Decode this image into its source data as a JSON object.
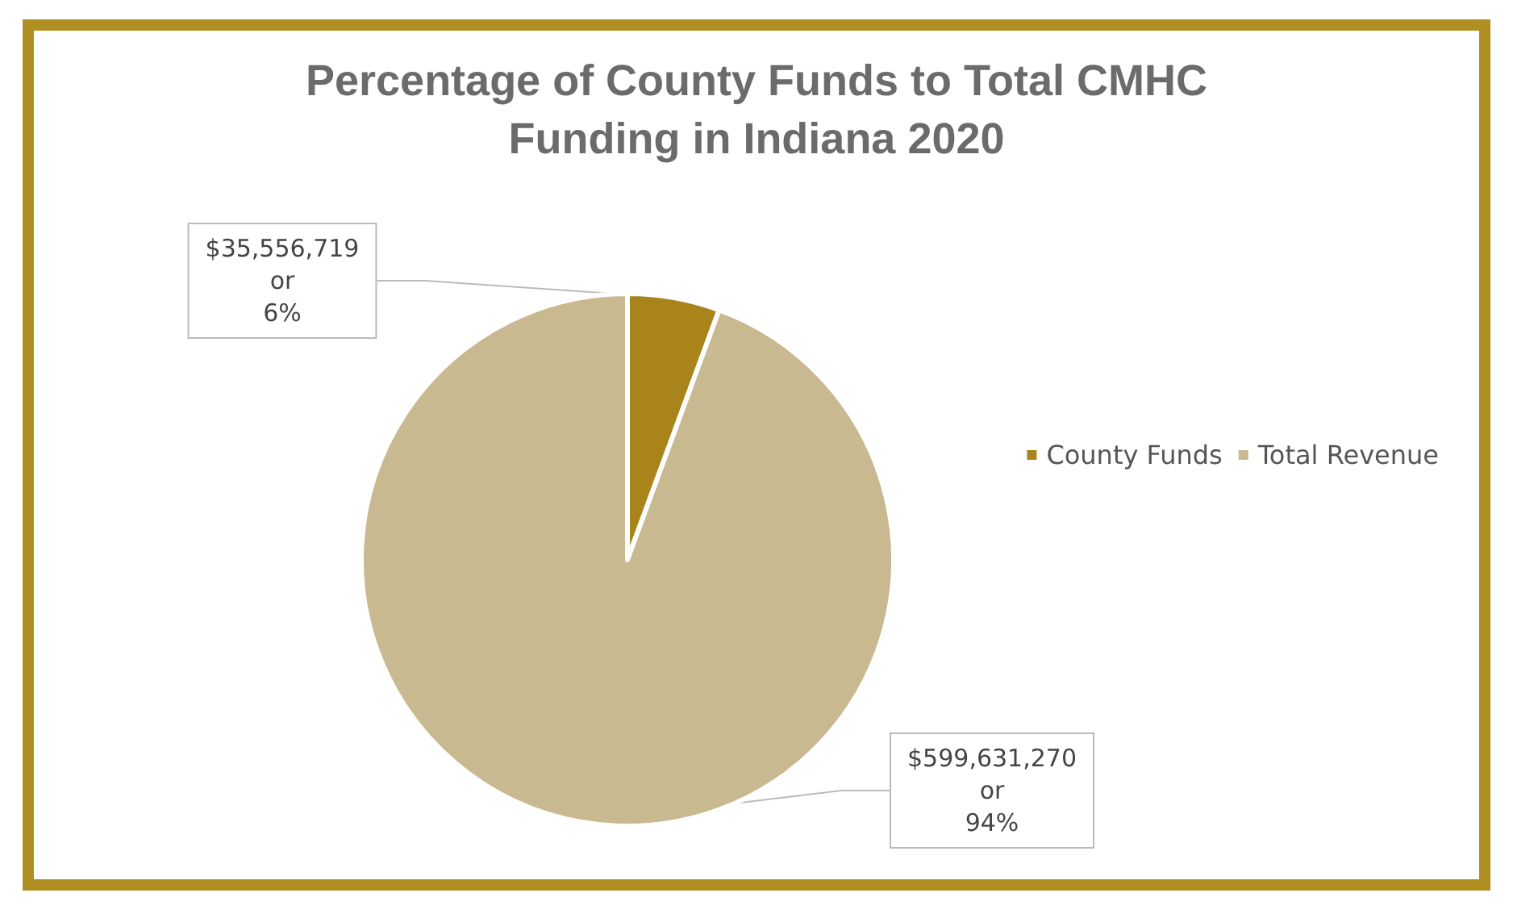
{
  "chart_data": {
    "type": "pie",
    "title": "Percentage of County Funds to Total CMHC\nFunding in Indiana 2020",
    "categories": [
      "County Funds",
      "Total Revenue"
    ],
    "values": [
      35556719,
      599631270
    ],
    "colors": [
      "#a8841a",
      "#c9b991"
    ],
    "value_labels": [
      "$35,556,719\nor\n6%",
      "$599,631,270\nor\n94%"
    ],
    "legend": "right"
  }
}
